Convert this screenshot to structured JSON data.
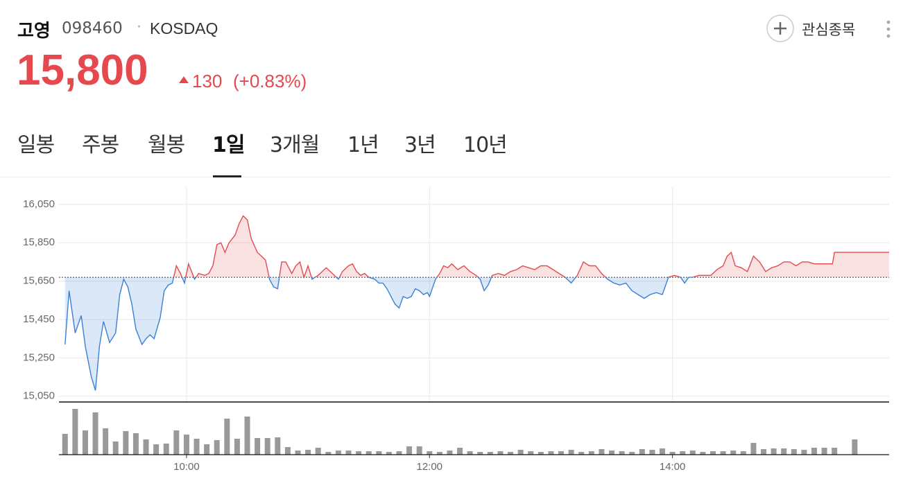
{
  "header": {
    "name": "고영",
    "code": "098460",
    "separator": "·",
    "market": "KOSDAQ",
    "price": "15,800",
    "change": "130",
    "change_pct": "(+0.83%)",
    "watchlist": "관심종목"
  },
  "tabs": [
    "일봉",
    "주봉",
    "월봉",
    "1일",
    "3개월",
    "1년",
    "3년",
    "10년"
  ],
  "chart_data": {
    "type": "line",
    "x": [
      "09:00",
      "09:02",
      "09:05",
      "09:08",
      "09:10",
      "09:13",
      "09:15",
      "09:17",
      "09:19",
      "09:22",
      "09:25",
      "09:27",
      "09:29",
      "09:31",
      "09:33",
      "09:35",
      "09:38",
      "09:40",
      "09:42",
      "09:44",
      "09:47",
      "09:49",
      "09:51",
      "09:53",
      "09:55",
      "09:57",
      "09:59",
      "10:01",
      "10:04",
      "10:06",
      "10:09",
      "10:11",
      "10:13",
      "10:15",
      "10:17",
      "10:19",
      "10:21",
      "10:24",
      "10:26",
      "10:28",
      "10:30",
      "10:32",
      "10:35",
      "10:37",
      "10:39",
      "10:41",
      "10:43",
      "10:45",
      "10:47",
      "10:49",
      "10:52",
      "10:54",
      "10:56",
      "10:58",
      "11:00",
      "11:02",
      "11:05",
      "11:07",
      "11:09",
      "11:11",
      "11:13",
      "11:15",
      "11:17",
      "11:20",
      "11:22",
      "11:24",
      "11:26",
      "11:28",
      "11:30",
      "11:33",
      "11:35",
      "11:37",
      "11:39",
      "11:41",
      "11:43",
      "11:45",
      "11:47",
      "11:49",
      "11:51",
      "11:53",
      "11:55",
      "11:57",
      "11:59",
      "12:00",
      "12:03",
      "12:05",
      "12:07",
      "12:09",
      "12:11",
      "12:14",
      "12:17",
      "12:20",
      "12:23",
      "12:25",
      "12:27",
      "12:29",
      "12:31",
      "12:34",
      "12:37",
      "12:40",
      "12:43",
      "12:46",
      "12:49",
      "12:52",
      "12:55",
      "12:58",
      "13:01",
      "13:04",
      "13:07",
      "13:10",
      "13:13",
      "13:16",
      "13:19",
      "13:22",
      "13:25",
      "13:28",
      "13:31",
      "13:34",
      "13:37",
      "13:40",
      "13:43",
      "13:46",
      "13:49",
      "13:52",
      "13:55",
      "13:58",
      "14:01",
      "14:04",
      "14:06",
      "14:08",
      "14:10",
      "14:13",
      "14:16",
      "14:19",
      "14:22",
      "14:25",
      "14:27",
      "14:29",
      "14:31",
      "14:34",
      "14:37",
      "14:40",
      "14:43",
      "14:46",
      "14:49",
      "14:52",
      "14:55",
      "14:58",
      "15:01",
      "15:04",
      "15:07",
      "15:10",
      "15:15",
      "15:19",
      "15:20",
      "15:47"
    ],
    "values": [
      15320,
      15600,
      15380,
      15470,
      15310,
      15150,
      15080,
      15310,
      15440,
      15330,
      15380,
      15580,
      15660,
      15620,
      15530,
      15400,
      15320,
      15350,
      15370,
      15350,
      15460,
      15600,
      15630,
      15640,
      15730,
      15690,
      15640,
      15740,
      15660,
      15690,
      15680,
      15690,
      15730,
      15840,
      15850,
      15800,
      15850,
      15890,
      15950,
      15990,
      15970,
      15870,
      15800,
      15780,
      15760,
      15660,
      15620,
      15610,
      15750,
      15750,
      15690,
      15730,
      15750,
      15670,
      15730,
      15660,
      15680,
      15700,
      15720,
      15700,
      15680,
      15660,
      15700,
      15730,
      15740,
      15700,
      15680,
      15690,
      15670,
      15660,
      15640,
      15640,
      15610,
      15570,
      15530,
      15510,
      15570,
      15560,
      15570,
      15610,
      15600,
      15580,
      15590,
      15570,
      15660,
      15690,
      15730,
      15720,
      15740,
      15710,
      15730,
      15700,
      15680,
      15660,
      15600,
      15630,
      15680,
      15690,
      15680,
      15700,
      15710,
      15730,
      15720,
      15710,
      15730,
      15730,
      15710,
      15690,
      15670,
      15640,
      15680,
      15750,
      15730,
      15730,
      15690,
      15660,
      15640,
      15630,
      15640,
      15600,
      15580,
      15560,
      15580,
      15590,
      15580,
      15670,
      15680,
      15670,
      15640,
      15670,
      15670,
      15680,
      15680,
      15680,
      15710,
      15730,
      15780,
      15800,
      15730,
      15720,
      15700,
      15780,
      15750,
      15700,
      15720,
      15730,
      15750,
      15750,
      15730,
      15750,
      15750,
      15740,
      15740,
      15740,
      15800,
      15800
    ],
    "baseline": 15670,
    "up_color": "#e5484d",
    "down_color": "#3a7fd5",
    "xlim": [
      "08:57",
      "15:47"
    ],
    "xticks": [
      "10:00",
      "12:00",
      "14:00"
    ],
    "ylim": [
      15020,
      16140
    ],
    "yticks": [
      {
        "value": 16050,
        "label": "16,050"
      },
      {
        "value": 15850,
        "label": "15,850"
      },
      {
        "value": 15650,
        "label": "15,650"
      },
      {
        "value": 15450,
        "label": "15,450"
      },
      {
        "value": 15250,
        "label": "15,250"
      },
      {
        "value": 15050,
        "label": "15,050"
      }
    ],
    "grid": true,
    "volume": {
      "color": "#999999",
      "x": [
        "09:00",
        "09:05",
        "09:10",
        "09:15",
        "09:20",
        "09:25",
        "09:30",
        "09:35",
        "09:40",
        "09:45",
        "09:50",
        "09:55",
        "10:00",
        "10:05",
        "10:10",
        "10:15",
        "10:20",
        "10:25",
        "10:30",
        "10:35",
        "10:40",
        "10:45",
        "10:50",
        "10:55",
        "11:00",
        "11:05",
        "11:10",
        "11:15",
        "11:20",
        "11:25",
        "11:30",
        "11:35",
        "11:40",
        "11:45",
        "11:50",
        "11:55",
        "12:00",
        "12:05",
        "12:10",
        "12:15",
        "12:20",
        "12:25",
        "12:30",
        "12:35",
        "12:40",
        "12:45",
        "12:50",
        "12:55",
        "13:00",
        "13:05",
        "13:10",
        "13:15",
        "13:20",
        "13:25",
        "13:30",
        "13:35",
        "13:40",
        "13:45",
        "13:50",
        "13:55",
        "14:00",
        "14:05",
        "14:10",
        "14:15",
        "14:20",
        "14:25",
        "14:30",
        "14:35",
        "14:40",
        "14:45",
        "14:50",
        "14:55",
        "15:00",
        "15:05",
        "15:10",
        "15:15",
        "15:20",
        "15:30"
      ],
      "values": [
        30,
        66,
        35,
        61,
        38,
        19,
        34,
        31,
        22,
        15,
        16,
        35,
        29,
        23,
        15,
        21,
        52,
        23,
        55,
        24,
        24,
        25,
        11,
        6,
        7,
        10,
        4,
        6,
        6,
        5,
        5,
        5,
        4,
        5,
        12,
        12,
        5,
        4,
        6,
        10,
        5,
        4,
        4,
        5,
        4,
        7,
        5,
        4,
        5,
        5,
        7,
        4,
        5,
        8,
        6,
        5,
        4,
        8,
        7,
        9,
        4,
        5,
        6,
        4,
        5,
        5,
        6,
        5,
        17,
        8,
        9,
        9,
        8,
        7,
        10,
        10,
        10,
        22
      ]
    }
  }
}
